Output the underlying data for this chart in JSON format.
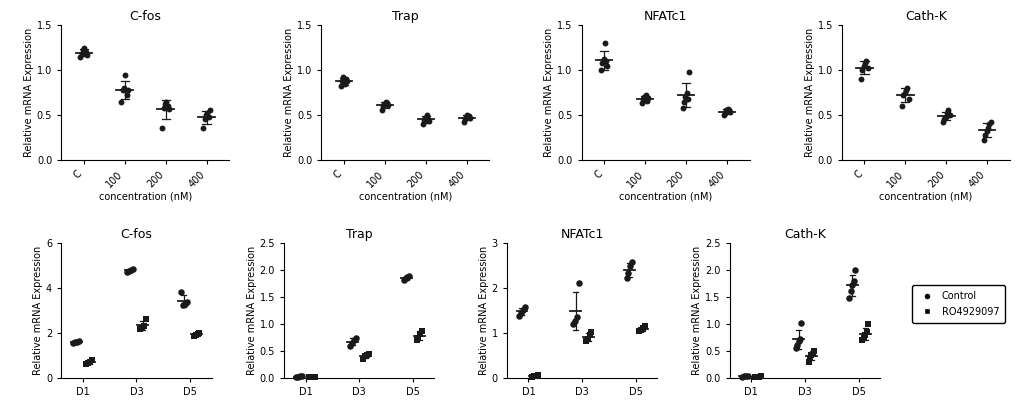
{
  "panel_A": {
    "titles": [
      "C-fos",
      "Trap",
      "NFATc1",
      "Cath-K"
    ],
    "xlabel": "concentration (nM)",
    "ylabel": "Relative mRNA Expression",
    "xtick_labels": [
      "C",
      "100",
      "200",
      "400"
    ],
    "ylim": [
      0,
      1.5
    ],
    "yticks": [
      0.0,
      0.5,
      1.0,
      1.5
    ],
    "data": {
      "C-fos": {
        "C": [
          1.15,
          1.18,
          1.22,
          1.25,
          1.2,
          1.17
        ],
        "100": [
          0.65,
          0.78,
          0.8,
          0.95,
          0.72,
          0.78
        ],
        "200": [
          0.35,
          0.58,
          0.62,
          0.65,
          0.6,
          0.57
        ],
        "400": [
          0.35,
          0.45,
          0.5,
          0.52,
          0.48,
          0.55
        ]
      },
      "Trap": {
        "C": [
          0.82,
          0.88,
          0.92,
          0.85,
          0.9,
          0.88
        ],
        "100": [
          0.55,
          0.6,
          0.62,
          0.65,
          0.63,
          0.61
        ],
        "200": [
          0.4,
          0.44,
          0.47,
          0.5,
          0.46,
          0.43
        ],
        "400": [
          0.42,
          0.46,
          0.48,
          0.5,
          0.49,
          0.47
        ]
      },
      "NFATc1": {
        "C": [
          1.0,
          1.08,
          1.12,
          1.3,
          1.1,
          1.05
        ],
        "100": [
          0.63,
          0.68,
          0.7,
          0.72,
          0.66,
          0.69
        ],
        "200": [
          0.58,
          0.65,
          0.7,
          0.75,
          0.68,
          0.98
        ],
        "400": [
          0.5,
          0.52,
          0.55,
          0.57,
          0.56,
          0.53
        ]
      },
      "Cath-K": {
        "C": [
          0.9,
          1.0,
          1.05,
          1.08,
          1.1,
          1.02
        ],
        "100": [
          0.6,
          0.72,
          0.75,
          0.78,
          0.8,
          0.68
        ],
        "200": [
          0.42,
          0.45,
          0.48,
          0.52,
          0.55,
          0.5
        ],
        "400": [
          0.22,
          0.28,
          0.32,
          0.36,
          0.4,
          0.42
        ]
      }
    }
  },
  "panel_B": {
    "titles": [
      "C-fos",
      "Trap",
      "NFATc1",
      "Cath-K"
    ],
    "ylabel": "Relative mRNA Expression",
    "xtick_labels": [
      "D1",
      "D3",
      "D5"
    ],
    "ylims": [
      6,
      2.5,
      3,
      2.5
    ],
    "yticks": [
      [
        0,
        2,
        4,
        6
      ],
      [
        0.0,
        0.5,
        1.0,
        1.5,
        2.0,
        2.5
      ],
      [
        0,
        1,
        2,
        3
      ],
      [
        0.0,
        0.5,
        1.0,
        1.5,
        2.0,
        2.5
      ]
    ],
    "data": {
      "C-fos": {
        "control": {
          "D1": [
            1.55,
            1.6,
            1.62,
            1.65
          ],
          "D3": [
            4.72,
            4.78,
            4.82,
            4.86
          ],
          "D5": [
            3.82,
            3.25,
            3.3,
            3.38
          ]
        },
        "drug": {
          "D1": [
            0.62,
            0.68,
            0.72,
            0.78
          ],
          "D3": [
            2.18,
            2.25,
            2.32,
            2.65
          ],
          "D5": [
            1.88,
            1.92,
            1.98,
            2.02
          ]
        }
      },
      "Trap": {
        "control": {
          "D1": [
            0.02,
            0.02,
            0.03,
            0.03
          ],
          "D3": [
            0.6,
            0.65,
            0.7,
            0.75
          ],
          "D5": [
            1.82,
            1.85,
            1.88,
            1.9
          ]
        },
        "drug": {
          "D1": [
            0.01,
            0.01,
            0.02,
            0.02
          ],
          "D3": [
            0.35,
            0.4,
            0.42,
            0.45
          ],
          "D5": [
            0.7,
            0.75,
            0.82,
            0.88
          ]
        }
      },
      "NFATc1": {
        "control": {
          "D1": [
            1.38,
            1.45,
            1.52,
            1.58
          ],
          "D3": [
            1.2,
            1.28,
            1.35,
            2.12
          ],
          "D5": [
            2.22,
            2.35,
            2.5,
            2.58
          ]
        },
        "drug": {
          "D1": [
            0.03,
            0.04,
            0.05,
            0.06
          ],
          "D3": [
            0.82,
            0.88,
            0.95,
            1.02
          ],
          "D5": [
            1.05,
            1.08,
            1.12,
            1.15
          ]
        }
      },
      "Cath-K": {
        "control": {
          "D1": [
            0.02,
            0.03,
            0.04,
            0.04
          ],
          "D3": [
            0.55,
            0.62,
            0.68,
            0.72,
            1.02
          ],
          "D5": [
            1.48,
            1.62,
            1.72,
            1.8,
            2.0
          ]
        },
        "drug": {
          "D1": [
            0.01,
            0.02,
            0.02,
            0.03
          ],
          "D3": [
            0.3,
            0.38,
            0.42,
            0.45,
            0.5
          ],
          "D5": [
            0.7,
            0.75,
            0.8,
            0.85,
            1.0
          ]
        }
      }
    }
  },
  "legend": {
    "control_label": "Control",
    "drug_label": "RO4929097"
  },
  "style": {
    "dot_color": "#1a1a1a",
    "dot_size": 18,
    "dot_size_B": 22,
    "line_color": "#1a1a1a",
    "panel_label_fontsize": 11,
    "title_fontsize": 9,
    "axis_label_fontsize": 7,
    "tick_fontsize": 7
  }
}
